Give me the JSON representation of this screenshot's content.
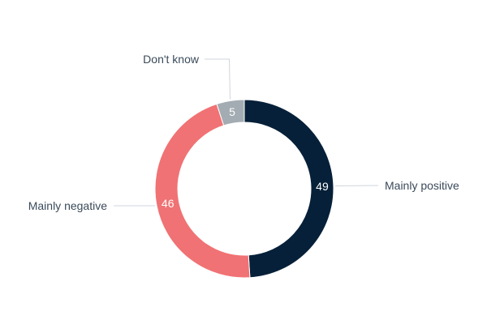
{
  "chart_data": {
    "type": "pie",
    "variant": "donut",
    "categories": [
      "Mainly positive",
      "Mainly negative",
      "Don't know"
    ],
    "values": [
      49,
      46,
      5
    ],
    "colors": [
      "#062039",
      "#f07274",
      "#a3acb2"
    ],
    "title": "",
    "legend": "none",
    "data_labels": [
      "49",
      "46",
      "5"
    ]
  }
}
